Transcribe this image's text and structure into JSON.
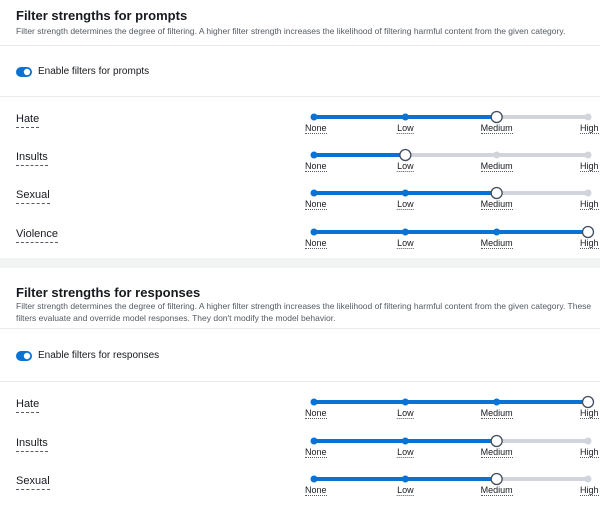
{
  "sections": [
    {
      "title": "Filter strengths for prompts",
      "description": "Filter strength determines the degree of filtering. A higher filter strength increases the likelihood of filtering harmful content from the given category.",
      "toggle_label": "Enable filters for prompts",
      "levels": [
        "None",
        "Low",
        "Medium",
        "High"
      ],
      "filters": [
        {
          "name": "Hate",
          "level": 2
        },
        {
          "name": "Insults",
          "level": 1
        },
        {
          "name": "Sexual",
          "level": 2
        },
        {
          "name": "Violence",
          "level": 3
        }
      ]
    },
    {
      "title": "Filter strengths for responses",
      "description": "Filter strength determines the degree of filtering. A higher filter strength increases the likelihood of filtering harmful content from the given category. These filters evaluate and override model responses. They don't modify the model behavior.",
      "toggle_label": "Enable filters for responses",
      "levels": [
        "None",
        "Low",
        "Medium",
        "High"
      ],
      "filters": [
        {
          "name": "Hate",
          "level": 3
        },
        {
          "name": "Insults",
          "level": 2
        },
        {
          "name": "Sexual",
          "level": 2
        }
      ]
    }
  ]
}
